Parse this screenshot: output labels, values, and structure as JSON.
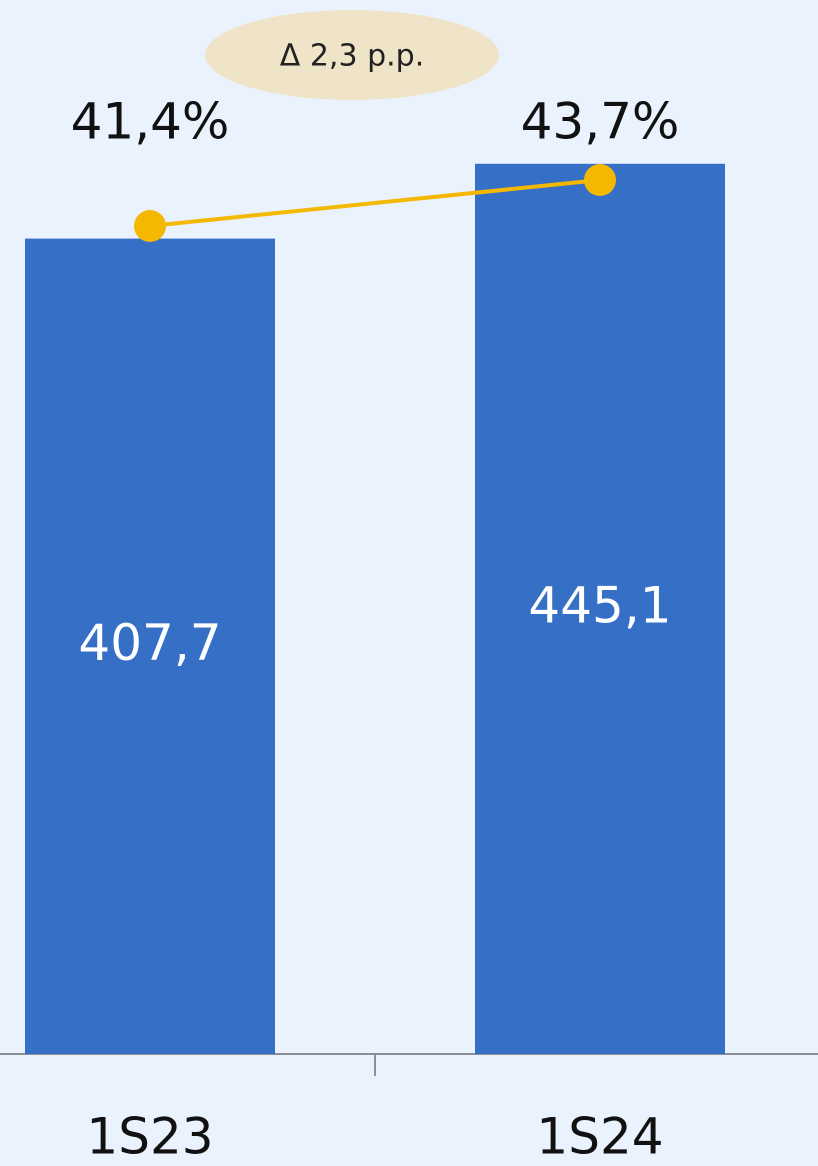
{
  "chart_data": {
    "type": "combo",
    "annotation": "Δ 2,3 p.p.",
    "categories": [
      "1S23",
      "1S24"
    ],
    "series": [
      {
        "type": "bar",
        "color": "#3570c6",
        "values": [
          407.7,
          445.1
        ],
        "value_labels": [
          "407,7",
          "445,1"
        ]
      },
      {
        "type": "line",
        "axis": "y2",
        "color": "#f5b800",
        "values": [
          41.4,
          43.7
        ],
        "value_labels": [
          "41,4%",
          "43,7%"
        ]
      }
    ],
    "ylim": [
      0,
      500
    ],
    "y2lim": [
      0,
      50
    ]
  }
}
